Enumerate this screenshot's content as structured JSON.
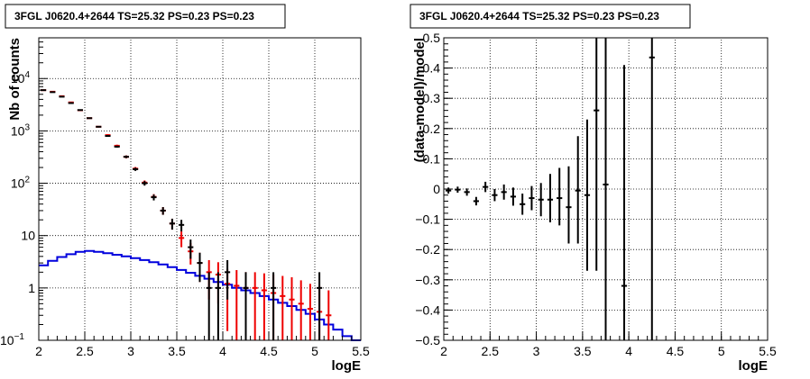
{
  "chart_data": [
    {
      "type": "histogram",
      "title": "3FGL J0620.4+2644 TS=25.32 PS=0.23 PS=0.23",
      "xlabel": "logE",
      "ylabel": "Nb of counts",
      "xlim": [
        2,
        5.5
      ],
      "ylim": [
        0.1,
        60000
      ],
      "yscale": "log",
      "grid": true,
      "x_ticks": [
        {
          "v": 2,
          "label": "2"
        },
        {
          "v": 2.5,
          "label": "2.5"
        },
        {
          "v": 3,
          "label": "3"
        },
        {
          "v": 3.5,
          "label": "3.5"
        },
        {
          "v": 4,
          "label": "4"
        },
        {
          "v": 4.5,
          "label": "4.5"
        },
        {
          "v": 5,
          "label": "5"
        },
        {
          "v": 5.5,
          "label": "5.5"
        }
      ],
      "y_ticks": [
        {
          "v": 0.1,
          "label": "10",
          "sup": "−1"
        },
        {
          "v": 1,
          "label": "1",
          "sup": ""
        },
        {
          "v": 10,
          "label": "10",
          "sup": ""
        },
        {
          "v": 100,
          "label": "10",
          "sup": "2"
        },
        {
          "v": 1000,
          "label": "10",
          "sup": "3"
        },
        {
          "v": 10000,
          "label": "10",
          "sup": "4"
        }
      ],
      "colors": {
        "data": "#000000",
        "model": "#ee0000",
        "component": "#0000dd"
      },
      "series": [
        {
          "kind": "data",
          "points": [
            {
              "x": 2.05,
              "y": 6000,
              "lo": 5920,
              "hi": 6080
            },
            {
              "x": 2.15,
              "y": 5500,
              "lo": 5430,
              "hi": 5570
            },
            {
              "x": 2.25,
              "y": 4500,
              "lo": 4430,
              "hi": 4570
            },
            {
              "x": 2.35,
              "y": 3400,
              "lo": 3340,
              "hi": 3460
            },
            {
              "x": 2.45,
              "y": 2500,
              "lo": 2450,
              "hi": 2550
            },
            {
              "x": 2.55,
              "y": 1750,
              "lo": 1710,
              "hi": 1790
            },
            {
              "x": 2.65,
              "y": 1200,
              "lo": 1165,
              "hi": 1235
            },
            {
              "x": 2.75,
              "y": 800,
              "lo": 772,
              "hi": 828
            },
            {
              "x": 2.85,
              "y": 500,
              "lo": 478,
              "hi": 522
            },
            {
              "x": 2.95,
              "y": 320,
              "lo": 302,
              "hi": 338
            },
            {
              "x": 3.05,
              "y": 185,
              "lo": 172,
              "hi": 198
            },
            {
              "x": 3.15,
              "y": 100,
              "lo": 90,
              "hi": 110
            },
            {
              "x": 3.25,
              "y": 54,
              "lo": 47,
              "hi": 61
            },
            {
              "x": 3.35,
              "y": 30,
              "lo": 25,
              "hi": 35
            },
            {
              "x": 3.45,
              "y": 17,
              "lo": 13,
              "hi": 21
            },
            {
              "x": 3.55,
              "y": 16,
              "lo": 12,
              "hi": 20
            },
            {
              "x": 3.65,
              "y": 6,
              "lo": 3.6,
              "hi": 8.4
            },
            {
              "x": 3.75,
              "y": 3,
              "lo": 1.3,
              "hi": 4.7
            },
            {
              "x": 3.85,
              "y": 1,
              "lo": 0.1,
              "hi": 2
            },
            {
              "x": 3.95,
              "y": 1,
              "lo": 0.1,
              "hi": 2
            },
            {
              "x": 4.05,
              "y": 2,
              "lo": 0.6,
              "hi": 3.4
            },
            {
              "x": 4.25,
              "y": 1,
              "lo": 0.1,
              "hi": 2
            },
            {
              "x": 4.55,
              "y": 1,
              "lo": 0.1,
              "hi": 2
            },
            {
              "x": 5.05,
              "y": 1,
              "lo": 0.1,
              "hi": 2
            }
          ]
        },
        {
          "kind": "model",
          "points": [
            {
              "x": 2.05,
              "y": 6000,
              "lo": 6000,
              "hi": 6000
            },
            {
              "x": 2.15,
              "y": 5600,
              "lo": 5600,
              "hi": 5600
            },
            {
              "x": 2.25,
              "y": 4600,
              "lo": 4600,
              "hi": 4600
            },
            {
              "x": 2.35,
              "y": 3500,
              "lo": 3500,
              "hi": 3500
            },
            {
              "x": 2.45,
              "y": 2480,
              "lo": 2480,
              "hi": 2480
            },
            {
              "x": 2.55,
              "y": 1750,
              "lo": 1750,
              "hi": 1750
            },
            {
              "x": 2.65,
              "y": 1200,
              "lo": 1200,
              "hi": 1200
            },
            {
              "x": 2.75,
              "y": 830,
              "lo": 800,
              "hi": 860
            },
            {
              "x": 2.85,
              "y": 520,
              "lo": 495,
              "hi": 545
            },
            {
              "x": 2.95,
              "y": 320,
              "lo": 300,
              "hi": 340
            },
            {
              "x": 3.05,
              "y": 190,
              "lo": 176,
              "hi": 204
            },
            {
              "x": 3.15,
              "y": 103,
              "lo": 93,
              "hi": 113
            },
            {
              "x": 3.25,
              "y": 55,
              "lo": 48,
              "hi": 62
            },
            {
              "x": 3.35,
              "y": 30,
              "lo": 25,
              "hi": 35
            },
            {
              "x": 3.45,
              "y": 17,
              "lo": 13,
              "hi": 21
            },
            {
              "x": 3.55,
              "y": 9,
              "lo": 6,
              "hi": 12
            },
            {
              "x": 3.65,
              "y": 5,
              "lo": 2.8,
              "hi": 7.2
            },
            {
              "x": 3.75,
              "y": 3,
              "lo": 1.3,
              "hi": 4.7
            },
            {
              "x": 3.85,
              "y": 2,
              "lo": 0.6,
              "hi": 3.4
            },
            {
              "x": 3.95,
              "y": 1.8,
              "lo": 0.5,
              "hi": 3.1
            },
            {
              "x": 4.05,
              "y": 1.2,
              "lo": 0.15,
              "hi": 2.3
            },
            {
              "x": 4.15,
              "y": 1.1,
              "lo": 0.1,
              "hi": 2.2
            },
            {
              "x": 4.25,
              "y": 1,
              "lo": 0.1,
              "hi": 2
            },
            {
              "x": 4.35,
              "y": 1,
              "lo": 0.1,
              "hi": 2
            },
            {
              "x": 4.45,
              "y": 0.9,
              "lo": 0.1,
              "hi": 1.9
            },
            {
              "x": 4.55,
              "y": 0.8,
              "lo": 0.1,
              "hi": 1.8
            },
            {
              "x": 4.65,
              "y": 0.7,
              "lo": 0.1,
              "hi": 1.7
            },
            {
              "x": 4.75,
              "y": 0.6,
              "lo": 0.1,
              "hi": 1.6
            },
            {
              "x": 4.85,
              "y": 0.5,
              "lo": 0.1,
              "hi": 1.4
            },
            {
              "x": 4.95,
              "y": 0.4,
              "lo": 0.1,
              "hi": 1.2
            },
            {
              "x": 5.05,
              "y": 0.35,
              "lo": 0.1,
              "hi": 1.1
            },
            {
              "x": 5.15,
              "y": 0.3,
              "lo": 0.1,
              "hi": 0.9
            }
          ]
        },
        {
          "kind": "component",
          "bin_edges": [
            2.0,
            2.1,
            2.2,
            2.3,
            2.4,
            2.5,
            2.6,
            2.7,
            2.8,
            2.9,
            3.0,
            3.1,
            3.2,
            3.3,
            3.4,
            3.5,
            3.6,
            3.7,
            3.8,
            3.9,
            4.0,
            4.1,
            4.2,
            4.3,
            4.4,
            4.5,
            4.6,
            4.7,
            4.8,
            4.9,
            5.0,
            5.1,
            5.2,
            5.3,
            5.4,
            5.5
          ],
          "values": [
            2.7,
            3.3,
            3.9,
            4.4,
            4.9,
            5.1,
            4.9,
            4.6,
            4.3,
            4.0,
            3.7,
            3.4,
            3.1,
            2.8,
            2.5,
            2.2,
            1.95,
            1.7,
            1.5,
            1.3,
            1.15,
            1.0,
            0.9,
            0.8,
            0.7,
            0.6,
            0.52,
            0.45,
            0.38,
            0.32,
            0.25,
            0.2,
            0.16,
            0.12,
            0.1
          ]
        }
      ]
    },
    {
      "type": "scatter",
      "title": "3FGL J0620.4+2644 TS=25.32 PS=0.23 PS=0.23",
      "xlabel": "logE",
      "ylabel": "(data-model)/model",
      "xlim": [
        2,
        5.5
      ],
      "ylim": [
        -0.5,
        0.5
      ],
      "grid": true,
      "x_ticks": [
        {
          "v": 2,
          "label": "2"
        },
        {
          "v": 2.5,
          "label": "2.5"
        },
        {
          "v": 3,
          "label": "3"
        },
        {
          "v": 3.5,
          "label": "3.5"
        },
        {
          "v": 4,
          "label": "4"
        },
        {
          "v": 4.5,
          "label": "4.5"
        },
        {
          "v": 5,
          "label": "5"
        },
        {
          "v": 5.5,
          "label": "5.5"
        }
      ],
      "y_ticks": [
        {
          "v": -0.5,
          "label": "−0.5"
        },
        {
          "v": -0.4,
          "label": "−0.4"
        },
        {
          "v": -0.3,
          "label": "−0.3"
        },
        {
          "v": -0.2,
          "label": "−0.2"
        },
        {
          "v": -0.1,
          "label": "−0.1"
        },
        {
          "v": 0,
          "label": "0"
        },
        {
          "v": 0.1,
          "label": "0.1"
        },
        {
          "v": 0.2,
          "label": "0.2"
        },
        {
          "v": 0.3,
          "label": "0.3"
        },
        {
          "v": 0.4,
          "label": "0.4"
        },
        {
          "v": 0.5,
          "label": "0.5"
        }
      ],
      "colors": {
        "data": "#000000"
      },
      "series": [
        {
          "kind": "residual",
          "points": [
            {
              "x": 2.05,
              "y": -0.005,
              "lo": -0.015,
              "hi": 0.005
            },
            {
              "x": 2.15,
              "y": -0.002,
              "lo": -0.012,
              "hi": 0.008
            },
            {
              "x": 2.25,
              "y": -0.01,
              "lo": -0.022,
              "hi": 0.002
            },
            {
              "x": 2.35,
              "y": -0.04,
              "lo": -0.054,
              "hi": -0.026
            },
            {
              "x": 2.45,
              "y": 0.007,
              "lo": -0.01,
              "hi": 0.024
            },
            {
              "x": 2.55,
              "y": -0.02,
              "lo": -0.04,
              "hi": 0.0
            },
            {
              "x": 2.65,
              "y": -0.01,
              "lo": -0.035,
              "hi": 0.015
            },
            {
              "x": 2.75,
              "y": -0.025,
              "lo": -0.055,
              "hi": 0.005
            },
            {
              "x": 2.85,
              "y": -0.05,
              "lo": -0.085,
              "hi": -0.015
            },
            {
              "x": 2.95,
              "y": -0.03,
              "lo": -0.07,
              "hi": 0.01
            },
            {
              "x": 3.05,
              "y": -0.035,
              "lo": -0.09,
              "hi": 0.02
            },
            {
              "x": 3.15,
              "y": -0.035,
              "lo": -0.11,
              "hi": 0.05
            },
            {
              "x": 3.25,
              "y": -0.03,
              "lo": -0.12,
              "hi": 0.07
            },
            {
              "x": 3.35,
              "y": -0.06,
              "lo": -0.18,
              "hi": 0.075
            },
            {
              "x": 3.45,
              "y": -0.005,
              "lo": -0.18,
              "hi": 0.175
            },
            {
              "x": 3.55,
              "y": -0.02,
              "lo": -0.27,
              "hi": 0.23
            },
            {
              "x": 3.65,
              "y": 0.26,
              "lo": -0.27,
              "hi": 0.5
            },
            {
              "x": 3.75,
              "y": 0.015,
              "lo": -0.5,
              "hi": 0.5
            },
            {
              "x": 3.95,
              "y": -0.32,
              "lo": -0.5,
              "hi": 0.41
            },
            {
              "x": 4.25,
              "y": 0.435,
              "lo": -0.5,
              "hi": 0.5
            }
          ]
        }
      ]
    }
  ]
}
